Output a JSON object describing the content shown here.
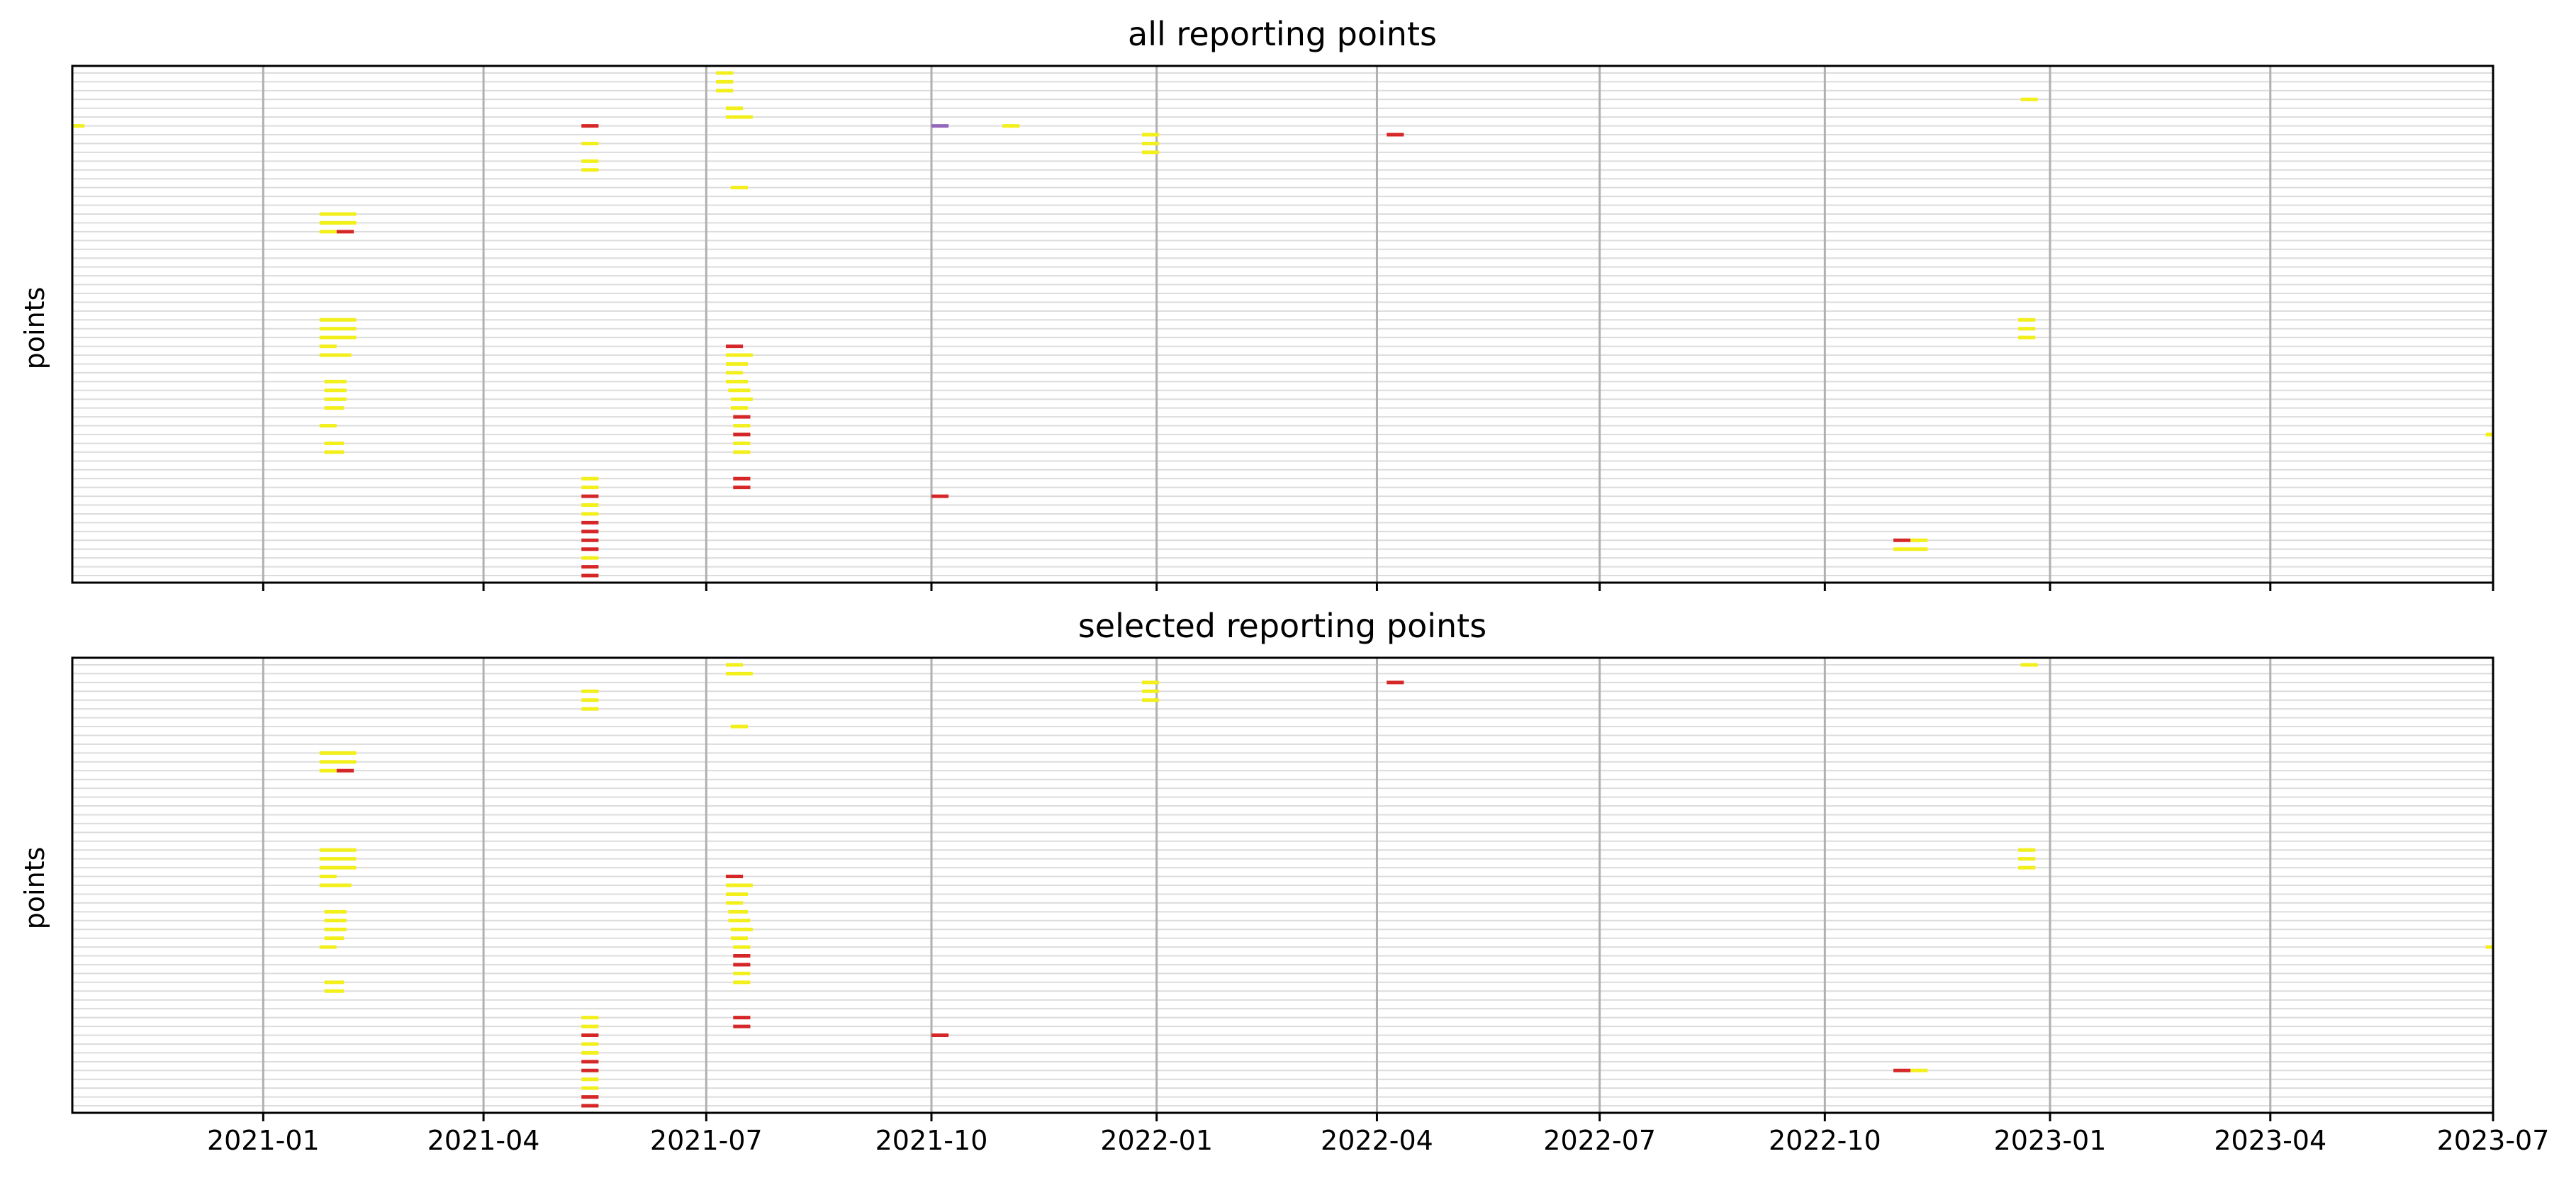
{
  "chart_data": [
    {
      "type": "timeline",
      "title": "all reporting points",
      "ylabel": "points",
      "xlim": [
        "2020-10-15",
        "2023-07-01"
      ],
      "x_ticks": [
        "2021-01",
        "2021-04",
        "2021-07",
        "2021-10",
        "2022-01",
        "2022-04",
        "2022-07",
        "2022-10",
        "2023-01",
        "2023-04",
        "2023-07"
      ],
      "x_tick_labels_shown": false,
      "rows": 58,
      "grid": "vertical at ticks; horizontal per row",
      "series_colors": {
        "yellow": "#f2ef1a",
        "red": "#d62728",
        "purple": "#9467bd"
      },
      "segments": [
        {
          "row": 0,
          "start": "2021-07-05",
          "end": "2021-07-12",
          "color": "yellow"
        },
        {
          "row": 1,
          "start": "2021-07-05",
          "end": "2021-07-12",
          "color": "yellow"
        },
        {
          "row": 2,
          "start": "2021-07-05",
          "end": "2021-07-12",
          "color": "yellow"
        },
        {
          "row": 3,
          "start": "2022-12-20",
          "end": "2022-12-27",
          "color": "yellow"
        },
        {
          "row": 4,
          "start": "2021-07-09",
          "end": "2021-07-16",
          "color": "yellow"
        },
        {
          "row": 5,
          "start": "2021-07-09",
          "end": "2021-07-20",
          "color": "yellow"
        },
        {
          "row": 6,
          "start": "2020-10-15",
          "end": "2020-10-20",
          "color": "yellow"
        },
        {
          "row": 6,
          "start": "2021-05-11",
          "end": "2021-05-18",
          "color": "red"
        },
        {
          "row": 6,
          "start": "2021-10-01",
          "end": "2021-10-08",
          "color": "purple"
        },
        {
          "row": 6,
          "start": "2021-10-30",
          "end": "2021-11-06",
          "color": "yellow"
        },
        {
          "row": 7,
          "start": "2021-12-26",
          "end": "2022-01-02",
          "color": "yellow"
        },
        {
          "row": 7,
          "start": "2022-04-05",
          "end": "2022-04-12",
          "color": "red"
        },
        {
          "row": 8,
          "start": "2021-05-11",
          "end": "2021-05-18",
          "color": "yellow"
        },
        {
          "row": 8,
          "start": "2021-12-26",
          "end": "2022-01-02",
          "color": "yellow"
        },
        {
          "row": 9,
          "start": "2021-12-26",
          "end": "2022-01-02",
          "color": "yellow"
        },
        {
          "row": 10,
          "start": "2021-05-11",
          "end": "2021-05-18",
          "color": "yellow"
        },
        {
          "row": 11,
          "start": "2021-05-11",
          "end": "2021-05-18",
          "color": "yellow"
        },
        {
          "row": 13,
          "start": "2021-07-11",
          "end": "2021-07-18",
          "color": "yellow"
        },
        {
          "row": 16,
          "start": "2021-01-24",
          "end": "2021-02-08",
          "color": "yellow"
        },
        {
          "row": 17,
          "start": "2021-01-24",
          "end": "2021-02-08",
          "color": "yellow"
        },
        {
          "row": 18,
          "start": "2021-01-24",
          "end": "2021-01-31",
          "color": "yellow"
        },
        {
          "row": 18,
          "start": "2021-01-31",
          "end": "2021-02-07",
          "color": "red"
        },
        {
          "row": 28,
          "start": "2021-01-24",
          "end": "2021-02-08",
          "color": "yellow"
        },
        {
          "row": 28,
          "start": "2022-12-19",
          "end": "2022-12-26",
          "color": "yellow"
        },
        {
          "row": 29,
          "start": "2021-01-24",
          "end": "2021-02-08",
          "color": "yellow"
        },
        {
          "row": 29,
          "start": "2022-12-19",
          "end": "2022-12-26",
          "color": "yellow"
        },
        {
          "row": 30,
          "start": "2021-01-24",
          "end": "2021-02-08",
          "color": "yellow"
        },
        {
          "row": 30,
          "start": "2022-12-19",
          "end": "2022-12-26",
          "color": "yellow"
        },
        {
          "row": 31,
          "start": "2021-01-24",
          "end": "2021-01-31",
          "color": "yellow"
        },
        {
          "row": 31,
          "start": "2021-07-09",
          "end": "2021-07-16",
          "color": "red"
        },
        {
          "row": 32,
          "start": "2021-01-24",
          "end": "2021-02-06",
          "color": "yellow"
        },
        {
          "row": 32,
          "start": "2021-07-09",
          "end": "2021-07-20",
          "color": "yellow"
        },
        {
          "row": 33,
          "start": "2021-07-09",
          "end": "2021-07-18",
          "color": "yellow"
        },
        {
          "row": 34,
          "start": "2021-07-09",
          "end": "2021-07-16",
          "color": "yellow"
        },
        {
          "row": 35,
          "start": "2021-01-26",
          "end": "2021-02-04",
          "color": "yellow"
        },
        {
          "row": 35,
          "start": "2021-07-09",
          "end": "2021-07-18",
          "color": "yellow"
        },
        {
          "row": 36,
          "start": "2021-01-26",
          "end": "2021-02-04",
          "color": "yellow"
        },
        {
          "row": 36,
          "start": "2021-07-10",
          "end": "2021-07-19",
          "color": "yellow"
        },
        {
          "row": 37,
          "start": "2021-01-26",
          "end": "2021-02-04",
          "color": "yellow"
        },
        {
          "row": 37,
          "start": "2021-07-11",
          "end": "2021-07-20",
          "color": "yellow"
        },
        {
          "row": 38,
          "start": "2021-01-26",
          "end": "2021-02-03",
          "color": "yellow"
        },
        {
          "row": 38,
          "start": "2021-07-11",
          "end": "2021-07-18",
          "color": "yellow"
        },
        {
          "row": 39,
          "start": "2021-07-12",
          "end": "2021-07-19",
          "color": "red"
        },
        {
          "row": 40,
          "start": "2021-01-24",
          "end": "2021-01-31",
          "color": "yellow"
        },
        {
          "row": 40,
          "start": "2021-07-12",
          "end": "2021-07-19",
          "color": "yellow"
        },
        {
          "row": 41,
          "start": "2021-07-12",
          "end": "2021-07-19",
          "color": "red"
        },
        {
          "row": 41,
          "start": "2023-06-28",
          "end": "2023-07-01",
          "color": "yellow"
        },
        {
          "row": 42,
          "start": "2021-01-26",
          "end": "2021-02-03",
          "color": "yellow"
        },
        {
          "row": 42,
          "start": "2021-07-12",
          "end": "2021-07-19",
          "color": "yellow"
        },
        {
          "row": 43,
          "start": "2021-01-26",
          "end": "2021-02-03",
          "color": "yellow"
        },
        {
          "row": 43,
          "start": "2021-07-12",
          "end": "2021-07-19",
          "color": "yellow"
        },
        {
          "row": 46,
          "start": "2021-05-11",
          "end": "2021-05-18",
          "color": "yellow"
        },
        {
          "row": 46,
          "start": "2021-07-12",
          "end": "2021-07-19",
          "color": "red"
        },
        {
          "row": 47,
          "start": "2021-07-12",
          "end": "2021-07-19",
          "color": "red"
        },
        {
          "row": 47,
          "start": "2021-05-11",
          "end": "2021-05-18",
          "color": "yellow"
        },
        {
          "row": 48,
          "start": "2021-05-11",
          "end": "2021-05-18",
          "color": "red"
        },
        {
          "row": 48,
          "start": "2021-10-01",
          "end": "2021-10-08",
          "color": "red"
        },
        {
          "row": 49,
          "start": "2021-05-11",
          "end": "2021-05-18",
          "color": "yellow"
        },
        {
          "row": 50,
          "start": "2021-05-11",
          "end": "2021-05-18",
          "color": "yellow"
        },
        {
          "row": 51,
          "start": "2021-05-11",
          "end": "2021-05-18",
          "color": "red"
        },
        {
          "row": 52,
          "start": "2021-05-11",
          "end": "2021-05-18",
          "color": "red"
        },
        {
          "row": 53,
          "start": "2021-05-11",
          "end": "2021-05-18",
          "color": "red"
        },
        {
          "row": 53,
          "start": "2022-10-29",
          "end": "2022-11-05",
          "color": "red"
        },
        {
          "row": 53,
          "start": "2022-11-05",
          "end": "2022-11-12",
          "color": "yellow"
        },
        {
          "row": 54,
          "start": "2021-05-11",
          "end": "2021-05-18",
          "color": "red"
        },
        {
          "row": 54,
          "start": "2022-10-29",
          "end": "2022-11-12",
          "color": "yellow"
        },
        {
          "row": 55,
          "start": "2021-05-11",
          "end": "2021-05-18",
          "color": "yellow"
        },
        {
          "row": 56,
          "start": "2021-05-11",
          "end": "2021-05-18",
          "color": "red"
        },
        {
          "row": 57,
          "start": "2021-05-11",
          "end": "2021-05-18",
          "color": "red"
        }
      ]
    },
    {
      "type": "timeline",
      "title": "selected reporting points",
      "ylabel": "points",
      "xlim": [
        "2020-10-15",
        "2023-07-01"
      ],
      "x_ticks": [
        "2021-01",
        "2021-04",
        "2021-07",
        "2021-10",
        "2022-01",
        "2022-04",
        "2022-07",
        "2022-10",
        "2023-01",
        "2023-04",
        "2023-07"
      ],
      "x_tick_labels_shown": true,
      "rows": 51,
      "grid": "vertical at ticks; horizontal per row",
      "series_colors": {
        "yellow": "#f2ef1a",
        "red": "#d62728"
      },
      "segments": [
        {
          "row": 0,
          "start": "2021-07-09",
          "end": "2021-07-16",
          "color": "yellow"
        },
        {
          "row": 0,
          "start": "2022-12-20",
          "end": "2022-12-27",
          "color": "yellow"
        },
        {
          "row": 1,
          "start": "2021-07-09",
          "end": "2021-07-20",
          "color": "yellow"
        },
        {
          "row": 2,
          "start": "2021-12-26",
          "end": "2022-01-02",
          "color": "yellow"
        },
        {
          "row": 2,
          "start": "2022-04-05",
          "end": "2022-04-12",
          "color": "red"
        },
        {
          "row": 3,
          "start": "2021-05-11",
          "end": "2021-05-18",
          "color": "yellow"
        },
        {
          "row": 3,
          "start": "2021-12-26",
          "end": "2022-01-02",
          "color": "yellow"
        },
        {
          "row": 4,
          "start": "2021-05-11",
          "end": "2021-05-18",
          "color": "yellow"
        },
        {
          "row": 4,
          "start": "2021-12-26",
          "end": "2022-01-02",
          "color": "yellow"
        },
        {
          "row": 5,
          "start": "2021-05-11",
          "end": "2021-05-18",
          "color": "yellow"
        },
        {
          "row": 7,
          "start": "2021-07-11",
          "end": "2021-07-18",
          "color": "yellow"
        },
        {
          "row": 10,
          "start": "2021-01-24",
          "end": "2021-02-08",
          "color": "yellow"
        },
        {
          "row": 11,
          "start": "2021-01-24",
          "end": "2021-02-08",
          "color": "yellow"
        },
        {
          "row": 12,
          "start": "2021-01-24",
          "end": "2021-01-31",
          "color": "yellow"
        },
        {
          "row": 12,
          "start": "2021-01-31",
          "end": "2021-02-07",
          "color": "red"
        },
        {
          "row": 21,
          "start": "2021-01-24",
          "end": "2021-02-08",
          "color": "yellow"
        },
        {
          "row": 21,
          "start": "2022-12-19",
          "end": "2022-12-26",
          "color": "yellow"
        },
        {
          "row": 22,
          "start": "2021-01-24",
          "end": "2021-02-08",
          "color": "yellow"
        },
        {
          "row": 22,
          "start": "2022-12-19",
          "end": "2022-12-26",
          "color": "yellow"
        },
        {
          "row": 23,
          "start": "2021-01-24",
          "end": "2021-02-08",
          "color": "yellow"
        },
        {
          "row": 23,
          "start": "2022-12-19",
          "end": "2022-12-26",
          "color": "yellow"
        },
        {
          "row": 24,
          "start": "2021-01-24",
          "end": "2021-01-31",
          "color": "yellow"
        },
        {
          "row": 24,
          "start": "2021-07-09",
          "end": "2021-07-16",
          "color": "red"
        },
        {
          "row": 25,
          "start": "2021-01-24",
          "end": "2021-02-06",
          "color": "yellow"
        },
        {
          "row": 25,
          "start": "2021-07-09",
          "end": "2021-07-20",
          "color": "yellow"
        },
        {
          "row": 26,
          "start": "2021-07-09",
          "end": "2021-07-18",
          "color": "yellow"
        },
        {
          "row": 27,
          "start": "2021-07-09",
          "end": "2021-07-16",
          "color": "yellow"
        },
        {
          "row": 28,
          "start": "2021-01-26",
          "end": "2021-02-04",
          "color": "yellow"
        },
        {
          "row": 28,
          "start": "2021-07-10",
          "end": "2021-07-18",
          "color": "yellow"
        },
        {
          "row": 29,
          "start": "2021-01-26",
          "end": "2021-02-04",
          "color": "yellow"
        },
        {
          "row": 29,
          "start": "2021-07-10",
          "end": "2021-07-19",
          "color": "yellow"
        },
        {
          "row": 30,
          "start": "2021-01-26",
          "end": "2021-02-04",
          "color": "yellow"
        },
        {
          "row": 30,
          "start": "2021-07-11",
          "end": "2021-07-20",
          "color": "yellow"
        },
        {
          "row": 31,
          "start": "2021-01-26",
          "end": "2021-02-03",
          "color": "yellow"
        },
        {
          "row": 31,
          "start": "2021-07-11",
          "end": "2021-07-18",
          "color": "yellow"
        },
        {
          "row": 32,
          "start": "2021-01-24",
          "end": "2021-01-31",
          "color": "yellow"
        },
        {
          "row": 32,
          "start": "2021-07-12",
          "end": "2021-07-19",
          "color": "yellow"
        },
        {
          "row": 32,
          "start": "2023-06-28",
          "end": "2023-07-01",
          "color": "yellow"
        },
        {
          "row": 33,
          "start": "2021-07-12",
          "end": "2021-07-19",
          "color": "red"
        },
        {
          "row": 34,
          "start": "2021-07-12",
          "end": "2021-07-19",
          "color": "red"
        },
        {
          "row": 35,
          "start": "2021-07-12",
          "end": "2021-07-19",
          "color": "yellow"
        },
        {
          "row": 36,
          "start": "2021-01-26",
          "end": "2021-02-03",
          "color": "yellow"
        },
        {
          "row": 36,
          "start": "2021-07-12",
          "end": "2021-07-19",
          "color": "yellow"
        },
        {
          "row": 37,
          "start": "2021-01-26",
          "end": "2021-02-03",
          "color": "yellow"
        },
        {
          "row": 40,
          "start": "2021-05-11",
          "end": "2021-05-18",
          "color": "yellow"
        },
        {
          "row": 40,
          "start": "2021-07-12",
          "end": "2021-07-19",
          "color": "red"
        },
        {
          "row": 41,
          "start": "2021-05-11",
          "end": "2021-05-18",
          "color": "yellow"
        },
        {
          "row": 41,
          "start": "2021-07-12",
          "end": "2021-07-19",
          "color": "red"
        },
        {
          "row": 42,
          "start": "2021-05-11",
          "end": "2021-05-18",
          "color": "red"
        },
        {
          "row": 42,
          "start": "2021-10-01",
          "end": "2021-10-08",
          "color": "red"
        },
        {
          "row": 43,
          "start": "2021-05-11",
          "end": "2021-05-18",
          "color": "yellow"
        },
        {
          "row": 44,
          "start": "2021-05-11",
          "end": "2021-05-18",
          "color": "yellow"
        },
        {
          "row": 45,
          "start": "2021-05-11",
          "end": "2021-05-18",
          "color": "red"
        },
        {
          "row": 46,
          "start": "2021-05-11",
          "end": "2021-05-18",
          "color": "red"
        },
        {
          "row": 46,
          "start": "2022-10-29",
          "end": "2022-11-05",
          "color": "red"
        },
        {
          "row": 46,
          "start": "2022-11-05",
          "end": "2022-11-12",
          "color": "yellow"
        },
        {
          "row": 47,
          "start": "2021-05-11",
          "end": "2021-05-18",
          "color": "yellow"
        },
        {
          "row": 48,
          "start": "2021-05-11",
          "end": "2021-05-18",
          "color": "yellow"
        },
        {
          "row": 49,
          "start": "2021-05-11",
          "end": "2021-05-18",
          "color": "red"
        },
        {
          "row": 50,
          "start": "2021-05-11",
          "end": "2021-05-18",
          "color": "red"
        }
      ]
    }
  ]
}
